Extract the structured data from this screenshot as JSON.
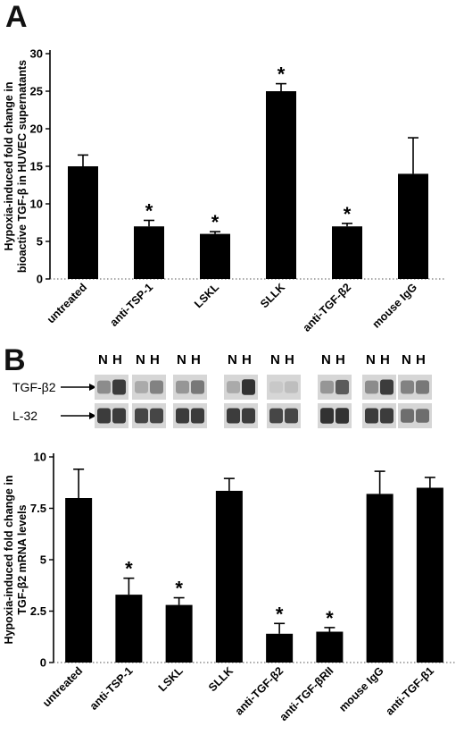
{
  "panels": {
    "a": {
      "letter": "A"
    },
    "b": {
      "letter": "B"
    }
  },
  "chart_data": [
    {
      "type": "bar",
      "panel": "A",
      "title": "",
      "ylabel": "Hypoxia-induced fold change in bioactive TGF-β in HUVEC supernatants",
      "xlabel": "",
      "categories": [
        "untreated",
        "anti-TSP-1",
        "LSKL",
        "SLLK",
        "anti-TGF-β2",
        "mouse IgG"
      ],
      "values": [
        15,
        7,
        6,
        25,
        7,
        14
      ],
      "errors": [
        1.5,
        0.8,
        0.3,
        1.0,
        0.4,
        4.8
      ],
      "significant": [
        false,
        true,
        true,
        true,
        true,
        false
      ],
      "marker": "*",
      "ylim": [
        0,
        30
      ],
      "yticks": [
        "0",
        "5",
        "10",
        "15",
        "20",
        "25",
        "30"
      ],
      "grid": false,
      "color": "#000000"
    },
    {
      "type": "bar",
      "panel": "B",
      "title": "",
      "ylabel": "Hypoxia-induced fold change in TGF-β2 mRNA levels",
      "xlabel": "",
      "categories": [
        "untreated",
        "anti-TSP-1",
        "LSKL",
        "SLLK",
        "anti-TGF-β2",
        "anti-TGF-βRII",
        "mouse IgG",
        "anti-TGF-β1"
      ],
      "values": [
        8.0,
        3.3,
        2.8,
        8.35,
        1.4,
        1.5,
        8.2,
        8.5
      ],
      "errors": [
        1.4,
        0.8,
        0.35,
        0.6,
        0.5,
        0.2,
        1.1,
        0.5
      ],
      "significant": [
        false,
        true,
        true,
        false,
        true,
        true,
        false,
        false
      ],
      "marker": "*",
      "ylim": [
        0,
        10
      ],
      "yticks": [
        "0",
        "2.5",
        "5",
        "7.5",
        "10"
      ],
      "grid": false,
      "color": "#000000"
    }
  ],
  "blot": {
    "lane_labels": [
      "N",
      "H"
    ],
    "rows": [
      {
        "label": "TGF-β2",
        "intensities": [
          [
            0.45,
            0.85
          ],
          [
            0.3,
            0.5
          ],
          [
            0.4,
            0.55
          ],
          [
            0.3,
            0.9
          ],
          [
            0.15,
            0.2
          ],
          [
            0.4,
            0.7
          ],
          [
            0.45,
            0.85
          ],
          [
            0.5,
            0.55
          ]
        ]
      },
      {
        "label": "L-32",
        "intensities": [
          [
            0.85,
            0.85
          ],
          [
            0.8,
            0.8
          ],
          [
            0.85,
            0.85
          ],
          [
            0.85,
            0.85
          ],
          [
            0.8,
            0.8
          ],
          [
            0.9,
            0.9
          ],
          [
            0.85,
            0.85
          ],
          [
            0.6,
            0.6
          ]
        ]
      }
    ]
  }
}
